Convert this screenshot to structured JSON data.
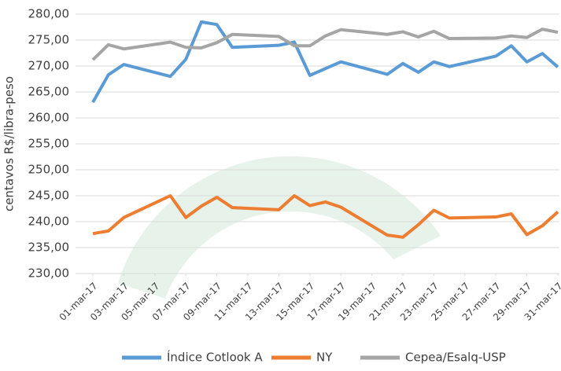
{
  "chart_data": {
    "type": "line",
    "y_label": "centavos R$/libra-peso",
    "x": [
      "2017-03-01",
      "2017-03-02",
      "2017-03-03",
      "2017-03-06",
      "2017-03-07",
      "2017-03-08",
      "2017-03-09",
      "2017-03-10",
      "2017-03-13",
      "2017-03-14",
      "2017-03-15",
      "2017-03-16",
      "2017-03-17",
      "2017-03-20",
      "2017-03-21",
      "2017-03-22",
      "2017-03-23",
      "2017-03-24",
      "2017-03-27",
      "2017-03-28",
      "2017-03-29",
      "2017-03-30",
      "2017-03-31"
    ],
    "xlim": [
      "2017-03-01",
      "2017-03-31"
    ],
    "xticks": [
      {
        "value": "2017-03-01",
        "label": "01-mar-17"
      },
      {
        "value": "2017-03-03",
        "label": "03-mar-17"
      },
      {
        "value": "2017-03-05",
        "label": "05-mar-17"
      },
      {
        "value": "2017-03-07",
        "label": "07-mar-17"
      },
      {
        "value": "2017-03-09",
        "label": "09-mar-17"
      },
      {
        "value": "2017-03-11",
        "label": "11-mar-17"
      },
      {
        "value": "2017-03-13",
        "label": "13-mar-17"
      },
      {
        "value": "2017-03-15",
        "label": "15-mar-17"
      },
      {
        "value": "2017-03-17",
        "label": "17-mar-17"
      },
      {
        "value": "2017-03-19",
        "label": "19-mar-17"
      },
      {
        "value": "2017-03-21",
        "label": "21-mar-17"
      },
      {
        "value": "2017-03-23",
        "label": "23-mar-17"
      },
      {
        "value": "2017-03-25",
        "label": "25-mar-17"
      },
      {
        "value": "2017-03-27",
        "label": "27-mar-17"
      },
      {
        "value": "2017-03-29",
        "label": "29-mar-17"
      },
      {
        "value": "2017-03-31",
        "label": "31-mar-17"
      }
    ],
    "ylim": [
      230,
      280
    ],
    "yticks": [
      {
        "value": 230,
        "label": "230,00"
      },
      {
        "value": 235,
        "label": "235,00"
      },
      {
        "value": 240,
        "label": "240,00"
      },
      {
        "value": 245,
        "label": "245,00"
      },
      {
        "value": 250,
        "label": "250,00"
      },
      {
        "value": 255,
        "label": "255,00"
      },
      {
        "value": 260,
        "label": "260,00"
      },
      {
        "value": 265,
        "label": "265,00"
      },
      {
        "value": 270,
        "label": "270,00"
      },
      {
        "value": 275,
        "label": "275,00"
      },
      {
        "value": 280,
        "label": "280,00"
      }
    ],
    "grid": true,
    "legend": "bottom",
    "series": [
      {
        "name": "Índice Cotlook A",
        "color": "#5b9bd5",
        "values": [
          263.0,
          268.3,
          270.3,
          268.0,
          271.3,
          278.5,
          278.0,
          273.6,
          274.0,
          274.6,
          268.2,
          269.5,
          270.8,
          268.4,
          270.5,
          268.8,
          270.8,
          269.9,
          271.9,
          273.9,
          270.8,
          272.4,
          269.8
        ]
      },
      {
        "name": "NY",
        "color": "#ed7d31",
        "values": [
          237.7,
          238.2,
          240.8,
          245.0,
          240.8,
          243.0,
          244.7,
          242.7,
          242.3,
          245.0,
          243.1,
          243.8,
          242.8,
          237.4,
          237.0,
          239.4,
          242.2,
          240.7,
          240.9,
          241.5,
          237.5,
          239.2,
          241.9
        ]
      },
      {
        "name": "Cepea/Esalq-USP",
        "color": "#a5a5a5",
        "values": [
          271.2,
          274.1,
          273.3,
          274.6,
          273.6,
          273.5,
          274.5,
          276.1,
          275.7,
          273.9,
          273.9,
          275.8,
          277.0,
          276.1,
          276.6,
          275.6,
          276.7,
          275.3,
          275.4,
          275.8,
          275.5,
          277.1,
          276.5
        ]
      }
    ]
  }
}
